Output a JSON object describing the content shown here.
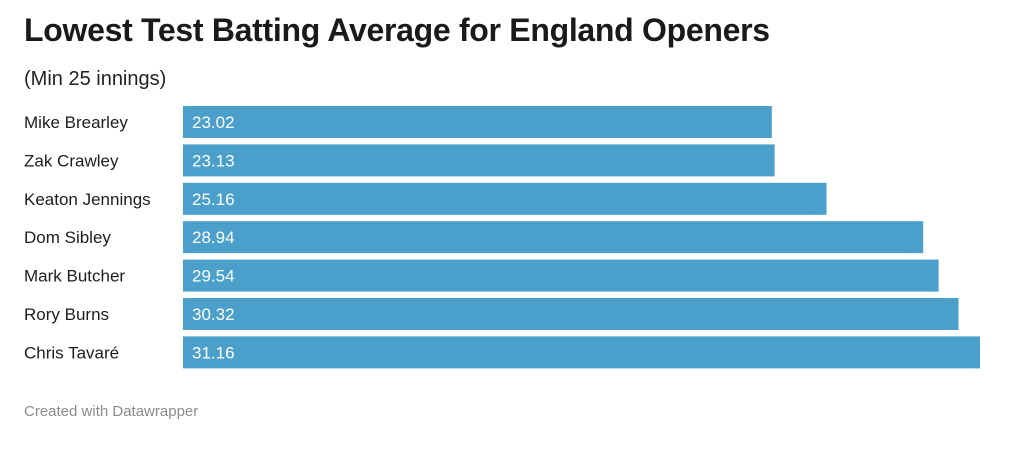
{
  "chart_data": {
    "type": "bar",
    "orientation": "horizontal",
    "title": "Lowest Test Batting Average for England Openers",
    "subtitle": "(Min 25 innings)",
    "categories": [
      "Mike Brearley",
      "Zak Crawley",
      "Keaton Jennings",
      "Dom Sibley",
      "Mark Butcher",
      "Rory Burns",
      "Chris Tavaré"
    ],
    "values": [
      23.02,
      23.13,
      25.16,
      28.94,
      29.54,
      30.32,
      31.16
    ],
    "value_labels": [
      "23.02",
      "23.13",
      "25.16",
      "28.94",
      "29.54",
      "30.32",
      "31.16"
    ],
    "xlim": [
      0,
      31.16
    ],
    "grid": false,
    "legend": "none",
    "bar_color": "#4a9fcb",
    "footer": "Created with Datawrapper"
  }
}
